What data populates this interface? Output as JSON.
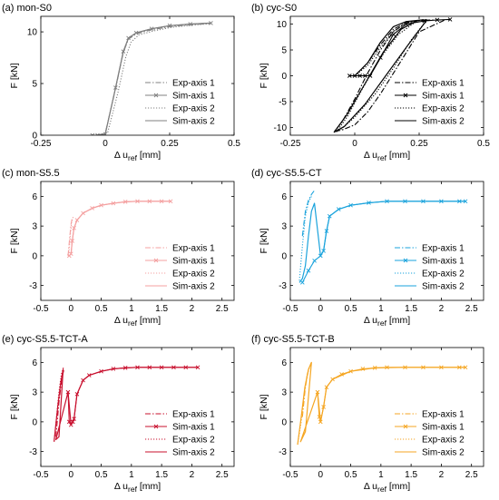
{
  "chart_data": [
    {
      "type": "line",
      "panel_label": "(a) mon-S0",
      "xlabel": "Δ u_ref [mm]",
      "ylabel": "F [kN]",
      "xlim": [
        -0.25,
        0.5
      ],
      "ylim": [
        0,
        11.5
      ],
      "xticks": [
        -0.25,
        0,
        0.25,
        0.5
      ],
      "xtick_labels": [
        "-0.25",
        "0",
        "0.25",
        "0.5"
      ],
      "yticks": [
        0,
        5,
        10
      ],
      "ytick_labels": [
        "0",
        "5",
        "10"
      ],
      "color": "#808080",
      "legend_position": "lower-right",
      "series": [
        {
          "name": "Exp-axis 1",
          "style": "dashdot",
          "marker": "none",
          "x": [
            -0.03,
            0.0,
            0.04,
            0.07,
            0.09,
            0.12,
            0.18,
            0.25,
            0.33,
            0.41
          ],
          "y": [
            0,
            0.2,
            4.5,
            8.0,
            9.3,
            9.8,
            10.2,
            10.5,
            10.7,
            10.8
          ]
        },
        {
          "name": "Sim-axis 1",
          "style": "solid",
          "marker": "x",
          "x": [
            -0.05,
            -0.03,
            0.0,
            0.04,
            0.07,
            0.09,
            0.12,
            0.18,
            0.25,
            0.33,
            0.41
          ],
          "y": [
            0,
            0,
            0.1,
            4.6,
            8.1,
            9.4,
            9.9,
            10.3,
            10.6,
            10.75,
            10.85
          ]
        },
        {
          "name": "Exp-axis 2",
          "style": "dotted",
          "marker": "none",
          "x": [
            -0.02,
            0.01,
            0.05,
            0.08,
            0.1,
            0.13,
            0.19,
            0.26,
            0.34,
            0.41
          ],
          "y": [
            0,
            0.3,
            4.2,
            7.6,
            9.0,
            9.7,
            10.1,
            10.45,
            10.65,
            10.8
          ]
        },
        {
          "name": "Sim-axis 2",
          "style": "solid",
          "marker": "none",
          "x": [
            -0.03,
            0.0,
            0.04,
            0.07,
            0.09,
            0.12,
            0.18,
            0.25,
            0.33,
            0.41
          ],
          "y": [
            0,
            0.1,
            4.6,
            8.1,
            9.4,
            9.9,
            10.3,
            10.6,
            10.75,
            10.85
          ]
        }
      ]
    },
    {
      "type": "line",
      "panel_label": "(b) cyc-S0",
      "xlabel": "Δ u_ref [mm]",
      "ylabel": "F [kN]",
      "xlim": [
        -0.25,
        0.5
      ],
      "ylim": [
        -11.5,
        11.5
      ],
      "xticks": [
        -0.25,
        0,
        0.25,
        0.5
      ],
      "xtick_labels": [
        "-0.25",
        "0",
        "0.25",
        "0.5"
      ],
      "yticks": [
        -10,
        -5,
        0,
        5,
        10
      ],
      "ytick_labels": [
        "-10",
        "-5",
        "0",
        "5",
        "10"
      ],
      "color": "#000000",
      "legend_position": "lower-right",
      "series": [
        {
          "name": "Exp-axis 1",
          "style": "dashdot",
          "marker": "none",
          "x": [
            0.0,
            0.05,
            0.1,
            0.15,
            0.2,
            0.25,
            0.3,
            0.35,
            0.25,
            0.2,
            0.15,
            0.1,
            0.05,
            0.0,
            -0.05,
            -0.08,
            -0.05,
            0.0,
            0.05,
            0.1,
            0.15,
            0.2,
            0.25
          ],
          "y": [
            0,
            2.5,
            6.0,
            9.0,
            10.3,
            10.7,
            10.8,
            10.8,
            8.5,
            4.5,
            0.5,
            -3.5,
            -7.0,
            -9.5,
            -10.5,
            -10.8,
            -9.0,
            -4.5,
            0.5,
            5.0,
            8.5,
            10.3,
            10.7
          ]
        },
        {
          "name": "Sim-axis 1",
          "style": "solid",
          "marker": "x",
          "x": [
            -0.02,
            0.0,
            0.02,
            0.04,
            0.06,
            0.1,
            0.15,
            0.2,
            0.27,
            0.32,
            0.37
          ],
          "y": [
            0,
            0,
            0,
            0,
            0,
            3.5,
            8.0,
            10.0,
            10.6,
            10.8,
            10.9
          ]
        },
        {
          "name": "Exp-axis 2",
          "style": "dotted",
          "marker": "none",
          "x": [
            0.0,
            0.05,
            0.1,
            0.15,
            0.2,
            0.25,
            0.28,
            0.22,
            0.15,
            0.08,
            0.0,
            -0.05,
            -0.07,
            -0.03,
            0.03,
            0.1,
            0.17,
            0.23
          ],
          "y": [
            0,
            2.0,
            5.5,
            8.6,
            10.2,
            10.7,
            10.8,
            7.0,
            1.5,
            -3.5,
            -8.0,
            -10.2,
            -10.8,
            -8.0,
            -2.5,
            3.5,
            8.0,
            10.2
          ]
        },
        {
          "name": "Sim-axis 2",
          "style": "solid",
          "marker": "none",
          "x": [
            0.0,
            0.05,
            0.1,
            0.15,
            0.2,
            0.26,
            0.28,
            0.2,
            0.12,
            0.04,
            -0.04,
            -0.08,
            -0.03,
            0.04,
            0.11,
            0.18,
            0.24
          ],
          "y": [
            0,
            2.5,
            6.5,
            9.5,
            10.5,
            10.8,
            10.8,
            5.5,
            0.0,
            -5.5,
            -9.8,
            -10.9,
            -7.5,
            -1.5,
            4.5,
            9.0,
            10.6
          ]
        }
      ]
    },
    {
      "type": "line",
      "panel_label": "(c) mon-S5.5",
      "xlabel": "Δ u_ref [mm]",
      "ylabel": "F [kN]",
      "xlim": [
        -0.5,
        2.7
      ],
      "ylim": [
        -4.5,
        7.5
      ],
      "xticks": [
        -0.5,
        0,
        0.5,
        1,
        1.5,
        2,
        2.5
      ],
      "xtick_labels": [
        "-0.5",
        "0",
        "0.5",
        "1",
        "1.5",
        "2",
        "2.5"
      ],
      "yticks": [
        -3,
        0,
        3,
        6
      ],
      "ytick_labels": [
        "-3",
        "0",
        "3",
        "6"
      ],
      "color": "#f4a0a0",
      "legend_position": "lower-right",
      "series": [
        {
          "name": "Exp-axis 1",
          "style": "dashdot",
          "marker": "none",
          "x": [
            -0.05,
            -0.02,
            0.0,
            0.02
          ],
          "y": [
            0,
            2.0,
            3.2,
            3.8
          ]
        },
        {
          "name": "Sim-axis 1",
          "style": "solid",
          "marker": "x",
          "x": [
            -0.03,
            0.0,
            0.02,
            0.05,
            0.1,
            0.2,
            0.35,
            0.5,
            0.7,
            0.9,
            1.1,
            1.3,
            1.5,
            1.65
          ],
          "y": [
            0,
            0.2,
            1.5,
            2.8,
            3.6,
            4.3,
            4.8,
            5.1,
            5.3,
            5.45,
            5.5,
            5.5,
            5.5,
            5.5
          ]
        },
        {
          "name": "Exp-axis 2",
          "style": "dotted",
          "marker": "none",
          "x": [
            -0.04,
            -0.01,
            0.01,
            0.04
          ],
          "y": [
            0,
            2.2,
            3.4,
            4.0
          ]
        },
        {
          "name": "Sim-axis 2",
          "style": "solid",
          "marker": "none",
          "x": [
            -0.03,
            0.0,
            0.02,
            0.05,
            0.1,
            0.2,
            0.35,
            0.5,
            0.7,
            0.9,
            1.1,
            1.3,
            1.5,
            1.65
          ],
          "y": [
            0,
            0.2,
            1.5,
            2.8,
            3.6,
            4.3,
            4.8,
            5.1,
            5.3,
            5.45,
            5.5,
            5.5,
            5.5,
            5.5
          ]
        }
      ]
    },
    {
      "type": "line",
      "panel_label": "(d) cyc-S5.5-CT",
      "xlabel": "Δ u_ref [mm]",
      "ylabel": "F [kN]",
      "xlim": [
        -0.5,
        2.7
      ],
      "ylim": [
        -4.5,
        7.5
      ],
      "xticks": [
        -0.5,
        0,
        0.5,
        1,
        1.5,
        2,
        2.5
      ],
      "xtick_labels": [
        "-0.5",
        "0",
        "0.5",
        "1",
        "1.5",
        "2",
        "2.5"
      ],
      "yticks": [
        -3,
        0,
        3,
        6
      ],
      "ytick_labels": [
        "-3",
        "0",
        "3",
        "6"
      ],
      "color": "#1aa3dc",
      "legend_position": "lower-right",
      "series": [
        {
          "name": "Exp-axis 1",
          "style": "dashdot",
          "marker": "none",
          "x": [
            -0.3,
            -0.25,
            -0.2,
            -0.15,
            -0.1
          ],
          "y": [
            2.0,
            4.5,
            5.6,
            6.2,
            6.6
          ]
        },
        {
          "name": "Sim-axis 1",
          "style": "solid",
          "marker": "x",
          "x": [
            -0.3,
            -0.2,
            -0.1,
            0.0,
            0.05,
            0.1,
            0.15,
            0.3,
            0.5,
            0.8,
            1.1,
            1.4,
            1.7,
            2.0,
            2.3,
            2.4
          ],
          "y": [
            -2.7,
            -1.5,
            -0.5,
            0.0,
            0.5,
            2.5,
            4.0,
            4.7,
            5.1,
            5.35,
            5.5,
            5.5,
            5.5,
            5.5,
            5.5,
            5.5
          ]
        },
        {
          "name": "Exp-axis 2",
          "style": "dotted",
          "marker": "none",
          "x": [
            -0.35,
            -0.3,
            -0.25,
            -0.2,
            -0.15
          ],
          "y": [
            -2.5,
            1.0,
            4.0,
            5.4,
            6.0
          ]
        },
        {
          "name": "Sim-axis 2",
          "style": "solid",
          "marker": "none",
          "x": [
            -0.35,
            -0.3,
            -0.25,
            -0.2,
            -0.15,
            -0.1,
            0.0,
            0.05,
            0.1,
            0.15,
            0.3,
            0.5,
            0.8,
            1.1,
            1.4,
            1.7,
            2.0,
            2.3,
            2.4
          ],
          "y": [
            -2.7,
            -2.3,
            -1.0,
            2.0,
            4.5,
            5.3,
            0.0,
            0.5,
            2.5,
            4.0,
            4.7,
            5.1,
            5.35,
            5.5,
            5.5,
            5.5,
            5.5,
            5.5,
            5.5
          ]
        }
      ]
    },
    {
      "type": "line",
      "panel_label": "(e) cyc-S5.5-TCT-A",
      "xlabel": "Δ u_ref [mm]",
      "ylabel": "F [kN]",
      "xlim": [
        -0.5,
        2.7
      ],
      "ylim": [
        -4.5,
        7.5
      ],
      "xticks": [
        -0.5,
        0,
        0.5,
        1,
        1.5,
        2,
        2.5
      ],
      "xtick_labels": [
        "-0.5",
        "0",
        "0.5",
        "1",
        "1.5",
        "2",
        "2.5"
      ],
      "yticks": [
        -3,
        0,
        3,
        6
      ],
      "ytick_labels": [
        "-3",
        "0",
        "3",
        "6"
      ],
      "color": "#c8102e",
      "legend_position": "lower-right",
      "series": [
        {
          "name": "Exp-axis 1",
          "style": "dashdot",
          "marker": "none",
          "x": [
            -0.25,
            -0.2,
            -0.15,
            -0.12
          ],
          "y": [
            -1.5,
            2.0,
            4.5,
            5.2
          ]
        },
        {
          "name": "Sim-axis 1",
          "style": "solid",
          "marker": "x",
          "x": [
            -0.05,
            -0.03,
            0.0,
            0.03,
            0.05,
            0.1,
            0.2,
            0.3,
            0.5,
            0.7,
            0.9,
            1.1,
            1.3,
            1.5,
            1.7,
            1.9,
            2.1
          ],
          "y": [
            3.0,
            0.0,
            -0.3,
            0.0,
            0.3,
            2.8,
            4.2,
            4.7,
            5.1,
            5.35,
            5.45,
            5.5,
            5.5,
            5.5,
            5.5,
            5.5,
            5.5
          ]
        },
        {
          "name": "Exp-axis 2",
          "style": "dotted",
          "marker": "none",
          "x": [
            -0.28,
            -0.24,
            -0.2,
            -0.16,
            -0.12
          ],
          "y": [
            -2.0,
            0.5,
            3.0,
            4.8,
            5.6
          ]
        },
        {
          "name": "Sim-axis 2",
          "style": "solid",
          "marker": "none",
          "x": [
            -0.28,
            -0.22,
            -0.17,
            -0.13,
            -0.2,
            -0.25,
            -0.05,
            0.0,
            0.05,
            0.1,
            0.2,
            0.3,
            0.5,
            0.7,
            0.9,
            1.1,
            1.5,
            2.1
          ],
          "y": [
            -2.0,
            1.5,
            4.0,
            5.3,
            -1.5,
            -1.8,
            3.0,
            -0.3,
            0.3,
            2.8,
            4.2,
            4.7,
            5.1,
            5.35,
            5.45,
            5.5,
            5.5,
            5.5
          ]
        }
      ]
    },
    {
      "type": "line",
      "panel_label": "(f) cyc-S5.5-TCT-B",
      "xlabel": "Δ u_ref [mm]",
      "ylabel": "F [kN]",
      "xlim": [
        -0.5,
        2.7
      ],
      "ylim": [
        -4.5,
        7.5
      ],
      "xticks": [
        -0.5,
        0,
        0.5,
        1,
        1.5,
        2,
        2.5
      ],
      "xtick_labels": [
        "-0.5",
        "0",
        "0.5",
        "1",
        "1.5",
        "2",
        "2.5"
      ],
      "yticks": [
        -3,
        0,
        3,
        6
      ],
      "ytick_labels": [
        "-3",
        "0",
        "3",
        "6"
      ],
      "color": "#f5a623",
      "legend_position": "lower-right",
      "series": [
        {
          "name": "Exp-axis 1",
          "style": "dashdot",
          "marker": "none",
          "x": [
            -0.3,
            -0.25,
            -0.2,
            -0.15
          ],
          "y": [
            0.5,
            3.5,
            5.3,
            6.0
          ]
        },
        {
          "name": "Sim-axis 1",
          "style": "solid",
          "marker": "x",
          "x": [
            -0.05,
            -0.02,
            0.0,
            0.05,
            0.1,
            0.2,
            0.35,
            0.5,
            0.7,
            0.9,
            1.1,
            1.4,
            1.7,
            2.0,
            2.3,
            2.4
          ],
          "y": [
            3.0,
            0.5,
            0.0,
            1.5,
            3.5,
            4.3,
            4.8,
            5.1,
            5.35,
            5.45,
            5.5,
            5.5,
            5.5,
            5.5,
            5.5,
            5.5
          ]
        },
        {
          "name": "Exp-axis 2",
          "style": "dotted",
          "marker": "none",
          "x": [
            -0.38,
            -0.32,
            -0.27,
            -0.22,
            -0.17
          ],
          "y": [
            -2.3,
            0.0,
            2.8,
            4.8,
            5.7
          ]
        },
        {
          "name": "Sim-axis 2",
          "style": "solid",
          "marker": "none",
          "x": [
            -0.38,
            -0.32,
            -0.26,
            -0.2,
            -0.15,
            -0.25,
            -0.33,
            -0.05,
            0.0,
            0.05,
            0.1,
            0.2,
            0.5,
            0.9,
            1.4,
            2.0,
            2.4
          ],
          "y": [
            -2.3,
            0.5,
            3.5,
            5.3,
            6.0,
            -1.0,
            -2.0,
            3.0,
            0.0,
            1.5,
            3.5,
            4.3,
            5.1,
            5.45,
            5.5,
            5.5,
            5.5
          ]
        }
      ]
    }
  ]
}
